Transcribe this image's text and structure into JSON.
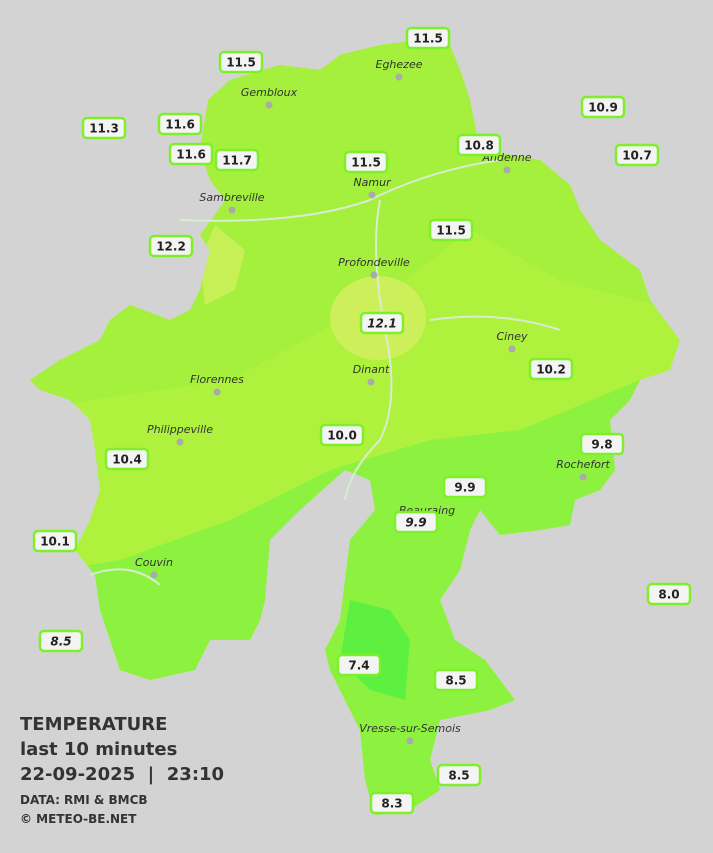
{
  "stations": [
    {
      "label": "11.5"
    },
    {
      "label": "11.5"
    },
    {
      "label": "11.3"
    },
    {
      "label": "11.6"
    },
    {
      "label": "11.6"
    },
    {
      "label": "11.7"
    },
    {
      "label": "11.5"
    },
    {
      "label": "10.8"
    },
    {
      "label": "10.9"
    },
    {
      "label": "10.7"
    },
    {
      "label": "11.5"
    },
    {
      "label": "12.2"
    },
    {
      "label": "12.1",
      "italic": true
    },
    {
      "label": "10.2"
    },
    {
      "label": "10.0"
    },
    {
      "label": "10.4"
    },
    {
      "label": "9.8"
    },
    {
      "label": "9.9"
    },
    {
      "label": "9.9",
      "italic": true
    },
    {
      "label": "10.1"
    },
    {
      "label": "8.0"
    },
    {
      "label": "8.5",
      "italic": true
    },
    {
      "label": "7.4"
    },
    {
      "label": "8.5"
    },
    {
      "label": "8.5"
    },
    {
      "label": "8.3"
    }
  ],
  "places": [
    "Eghezee",
    "Gembloux",
    "Andenne",
    "Namur",
    "Sambreville",
    "Profondeville",
    "Ciney",
    "Dinant",
    "Florennes",
    "Philippeville",
    "Rochefort",
    "Beauraing",
    "Couvin",
    "Vresse-sur-Semois"
  ],
  "legend": {
    "title": "TEMPERATURE",
    "period": "last 10 minutes",
    "datetime": "22-09-2025  |  23:10",
    "source": "DATA: RMI & BMCB",
    "credit": "© METEO-BE.NET"
  }
}
